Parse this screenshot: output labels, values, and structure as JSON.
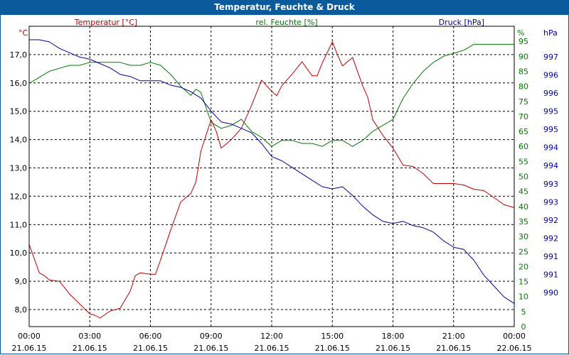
{
  "window": {
    "title": "Temperatur, Feuchte & Druck"
  },
  "colors": {
    "temperature": "#c00000",
    "humidity": "#007800",
    "pressure": "#0000a0",
    "title_bar": "#0b5b9c",
    "grid": "#000000"
  },
  "chart_data": {
    "type": "line",
    "title": "Temperatur, Feuchte & Druck",
    "grid": true,
    "x": {
      "range_hours": [
        0,
        24
      ],
      "tick_hours": [
        0,
        3,
        6,
        9,
        12,
        15,
        18,
        21,
        24
      ],
      "tick_labels": [
        {
          "time": "00:00",
          "date": "21.06.15"
        },
        {
          "time": "03:00",
          "date": "21.06.15"
        },
        {
          "time": "06:00",
          "date": "21.06.15"
        },
        {
          "time": "09:00",
          "date": "21.06.15"
        },
        {
          "time": "12:00",
          "date": "21.06.15"
        },
        {
          "time": "15:00",
          "date": "21.06.15"
        },
        {
          "time": "18:00",
          "date": "21.06.15"
        },
        {
          "time": "21:00",
          "date": "21.06.15"
        },
        {
          "time": "00:00",
          "date": "22.06.15"
        }
      ]
    },
    "axes": {
      "temperature": {
        "label": "Temperatur [°C]",
        "unit": "°C",
        "range": [
          7.4,
          18.0
        ],
        "ticks": [
          8.0,
          9.0,
          10.0,
          11.0,
          12.0,
          13.0,
          14.0,
          15.0,
          16.0,
          17.0
        ],
        "tick_labels": [
          "8,0",
          "9,0",
          "10,0",
          "11,0",
          "12,0",
          "13,0",
          "14,0",
          "15,0",
          "16,0",
          "17,0"
        ]
      },
      "humidity": {
        "label": "rel. Feuchte [%]",
        "unit": "%",
        "range": [
          0,
          100
        ],
        "ticks": [
          0,
          5,
          10,
          15,
          20,
          25,
          30,
          35,
          40,
          45,
          50,
          55,
          60,
          65,
          70,
          75,
          80,
          85,
          90,
          95
        ],
        "tick_labels": [
          "0",
          "5",
          "10",
          "15",
          "20",
          "25",
          "30",
          "35",
          "40",
          "45",
          "50",
          "55",
          "60",
          "65",
          "70",
          "75",
          "80",
          "85",
          "90",
          "95"
        ]
      },
      "pressure": {
        "label": "Druck [hPa]",
        "unit": "hPa",
        "tick_labels": [
          "997",
          "996",
          "996",
          "995",
          "995",
          "994",
          "994",
          "993",
          "993",
          "992",
          "992",
          "991",
          "991",
          "990"
        ]
      }
    },
    "series": [
      {
        "name": "Temperatur [°C]",
        "axis": "temperature",
        "hours": [
          0,
          0.25,
          0.5,
          0.75,
          1,
          1.5,
          2,
          2.5,
          3,
          3.25,
          3.5,
          4,
          4.5,
          5,
          5.25,
          5.5,
          6,
          6.25,
          6.5,
          7,
          7.5,
          8,
          8.25,
          8.5,
          9,
          9.25,
          9.5,
          10,
          10.5,
          11,
          11.5,
          12,
          12.25,
          12.5,
          13,
          13.5,
          14,
          14.25,
          14.5,
          15,
          15.25,
          15.5,
          16,
          16.5,
          16.75,
          17,
          17.5,
          18,
          18.5,
          19,
          19.5,
          20,
          20.5,
          21,
          21.5,
          22,
          22.5,
          23,
          23.5,
          24
        ],
        "values": [
          10.3,
          9.8,
          9.3,
          9.2,
          9.05,
          9.0,
          8.55,
          8.2,
          7.85,
          7.8,
          7.7,
          7.95,
          8.05,
          8.65,
          9.2,
          9.3,
          9.25,
          9.25,
          9.75,
          10.8,
          11.8,
          12.1,
          12.5,
          13.6,
          14.7,
          14.3,
          13.7,
          14.0,
          14.4,
          15.2,
          16.1,
          15.7,
          15.55,
          15.9,
          16.3,
          16.75,
          16.25,
          16.25,
          16.7,
          17.45,
          17.0,
          16.6,
          16.9,
          15.9,
          15.5,
          14.7,
          14.15,
          13.7,
          13.1,
          13.05,
          12.8,
          12.45,
          12.45,
          12.45,
          12.4,
          12.25,
          12.2,
          11.95,
          11.7,
          11.6
        ]
      },
      {
        "name": "rel. Feuchte [%]",
        "axis": "humidity",
        "hours": [
          0,
          0.5,
          1,
          1.5,
          2,
          2.5,
          3,
          3.5,
          4,
          4.5,
          5,
          5.5,
          6,
          6.5,
          7,
          7.5,
          8,
          8.25,
          8.5,
          9,
          9.5,
          10,
          10.5,
          11,
          11.5,
          12,
          12.5,
          13,
          13.5,
          14,
          14.5,
          15,
          15.5,
          16,
          16.5,
          17,
          17.5,
          18,
          18.5,
          19,
          19.5,
          20,
          20.5,
          21,
          21.5,
          22,
          22.5,
          23,
          23.5,
          24
        ],
        "values": [
          81,
          83,
          85,
          86,
          87,
          87,
          88,
          88,
          88,
          88,
          87,
          87,
          88,
          87,
          84,
          80,
          77,
          79,
          78,
          68,
          66,
          67,
          69,
          65,
          63,
          60,
          62,
          62,
          61,
          61,
          60,
          62,
          62,
          60,
          62,
          65,
          67,
          69,
          76,
          81,
          85,
          88,
          90,
          91,
          92,
          94,
          94,
          94,
          94,
          94
        ]
      },
      {
        "name": "Druck [hPa]",
        "axis": "pressure",
        "hours": [
          0,
          0.5,
          1,
          1.5,
          2,
          2.5,
          3,
          3.5,
          4,
          4.5,
          5,
          5.5,
          6,
          6.5,
          7,
          7.5,
          8,
          8.5,
          9,
          9.5,
          10,
          10.5,
          11,
          11.5,
          12,
          12.5,
          13,
          13.5,
          14,
          14.5,
          15,
          15.5,
          16,
          16.5,
          17,
          17.5,
          18,
          18.5,
          19,
          19.5,
          20,
          20.5,
          21,
          21.5,
          22,
          22.5,
          23,
          23.5,
          24
        ],
        "ticks_used": [
          997,
          996.6,
          996.2,
          995.8,
          995.4,
          995.0,
          994.6,
          994.2,
          993.8,
          993.4,
          993.0,
          992.6,
          992.2,
          991.8,
          991.4,
          991.0,
          990.6,
          990.2
        ],
        "values": [
          997.0,
          997.0,
          996.95,
          996.8,
          996.7,
          996.6,
          996.55,
          996.45,
          996.35,
          996.2,
          996.15,
          996.05,
          996.05,
          996.05,
          995.95,
          995.9,
          995.8,
          995.65,
          995.35,
          995.1,
          995.05,
          994.95,
          994.85,
          994.6,
          994.3,
          994.2,
          994.05,
          993.9,
          993.75,
          993.6,
          993.55,
          993.6,
          993.4,
          993.15,
          992.95,
          992.8,
          992.75,
          992.8,
          992.7,
          992.65,
          992.55,
          992.35,
          992.2,
          992.15,
          991.9,
          991.55,
          991.3,
          991.05,
          990.9
        ]
      }
    ]
  }
}
